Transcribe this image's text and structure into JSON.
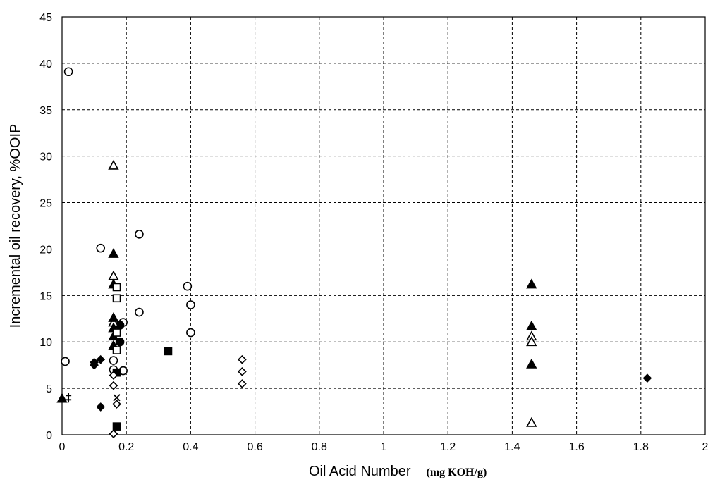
{
  "chart_data": {
    "type": "scatter",
    "title": "",
    "xlabel": "Oil Acid Number",
    "xlabel_unit": "(mg KOH/g)",
    "ylabel": "Incremental oil recovery, %OOIP",
    "xlim": [
      0,
      2
    ],
    "ylim": [
      0,
      45
    ],
    "x_ticks": [
      0,
      0.2,
      0.4,
      0.6,
      0.8,
      1,
      1.2,
      1.4,
      1.6,
      1.8,
      2
    ],
    "x_tick_labels": [
      "0",
      "0.2",
      "0.4",
      "0.6",
      "0.8",
      "1",
      "1.2",
      "1.4",
      "1.6",
      "1.8",
      "2"
    ],
    "y_ticks": [
      0,
      5,
      10,
      15,
      20,
      25,
      30,
      35,
      40,
      45
    ],
    "y_tick_labels": [
      "0",
      "5",
      "10",
      "15",
      "20",
      "25",
      "30",
      "35",
      "40",
      "45"
    ],
    "grid": true,
    "legend": "none",
    "series": [
      {
        "marker": "open-circle",
        "points": [
          [
            0.02,
            39.1
          ],
          [
            0.01,
            7.9
          ],
          [
            0.12,
            20.1
          ],
          [
            0.24,
            21.6
          ],
          [
            0.24,
            13.2
          ],
          [
            0.19,
            12.1
          ],
          [
            0.16,
            8.0
          ],
          [
            0.16,
            7.0
          ],
          [
            0.19,
            6.9
          ],
          [
            0.39,
            16.0
          ],
          [
            0.4,
            14.0
          ],
          [
            0.4,
            11.0
          ]
        ]
      },
      {
        "marker": "filled-circle",
        "points": [
          [
            0.18,
            11.8
          ],
          [
            0.18,
            10.0
          ]
        ]
      },
      {
        "marker": "open-triangle",
        "points": [
          [
            0.16,
            29.0
          ],
          [
            0.16,
            17.1
          ],
          [
            0.16,
            12.1
          ],
          [
            1.46,
            10.6
          ],
          [
            1.46,
            10.0
          ],
          [
            1.46,
            1.3
          ]
        ]
      },
      {
        "marker": "filled-triangle",
        "points": [
          [
            0.0,
            3.9
          ],
          [
            0.16,
            19.5
          ],
          [
            0.16,
            16.2
          ],
          [
            0.16,
            12.6
          ],
          [
            0.16,
            11.5
          ],
          [
            0.16,
            10.6
          ],
          [
            0.16,
            9.6
          ],
          [
            1.46,
            16.2
          ],
          [
            1.46,
            11.7
          ],
          [
            1.46,
            7.6
          ]
        ]
      },
      {
        "marker": "open-square",
        "points": [
          [
            0.17,
            15.9
          ],
          [
            0.17,
            14.7
          ],
          [
            0.17,
            11.0
          ],
          [
            0.17,
            9.1
          ]
        ]
      },
      {
        "marker": "filled-square",
        "points": [
          [
            0.33,
            9.0
          ],
          [
            0.17,
            6.7
          ],
          [
            0.17,
            0.9
          ]
        ]
      },
      {
        "marker": "open-diamond",
        "points": [
          [
            0.56,
            8.1
          ],
          [
            0.56,
            6.8
          ],
          [
            0.56,
            5.5
          ],
          [
            0.16,
            6.4
          ],
          [
            0.16,
            5.3
          ],
          [
            0.17,
            3.3
          ],
          [
            0.16,
            0.1
          ]
        ]
      },
      {
        "marker": "filled-diamond",
        "points": [
          [
            0.1,
            7.5
          ],
          [
            0.1,
            7.8
          ],
          [
            0.12,
            8.1
          ],
          [
            0.12,
            3.0
          ],
          [
            1.82,
            6.1
          ]
        ]
      },
      {
        "marker": "cross",
        "points": [
          [
            0.17,
            4.0
          ]
        ]
      },
      {
        "marker": "double-dagger",
        "points": [
          [
            0.02,
            4.0
          ]
        ]
      }
    ]
  }
}
